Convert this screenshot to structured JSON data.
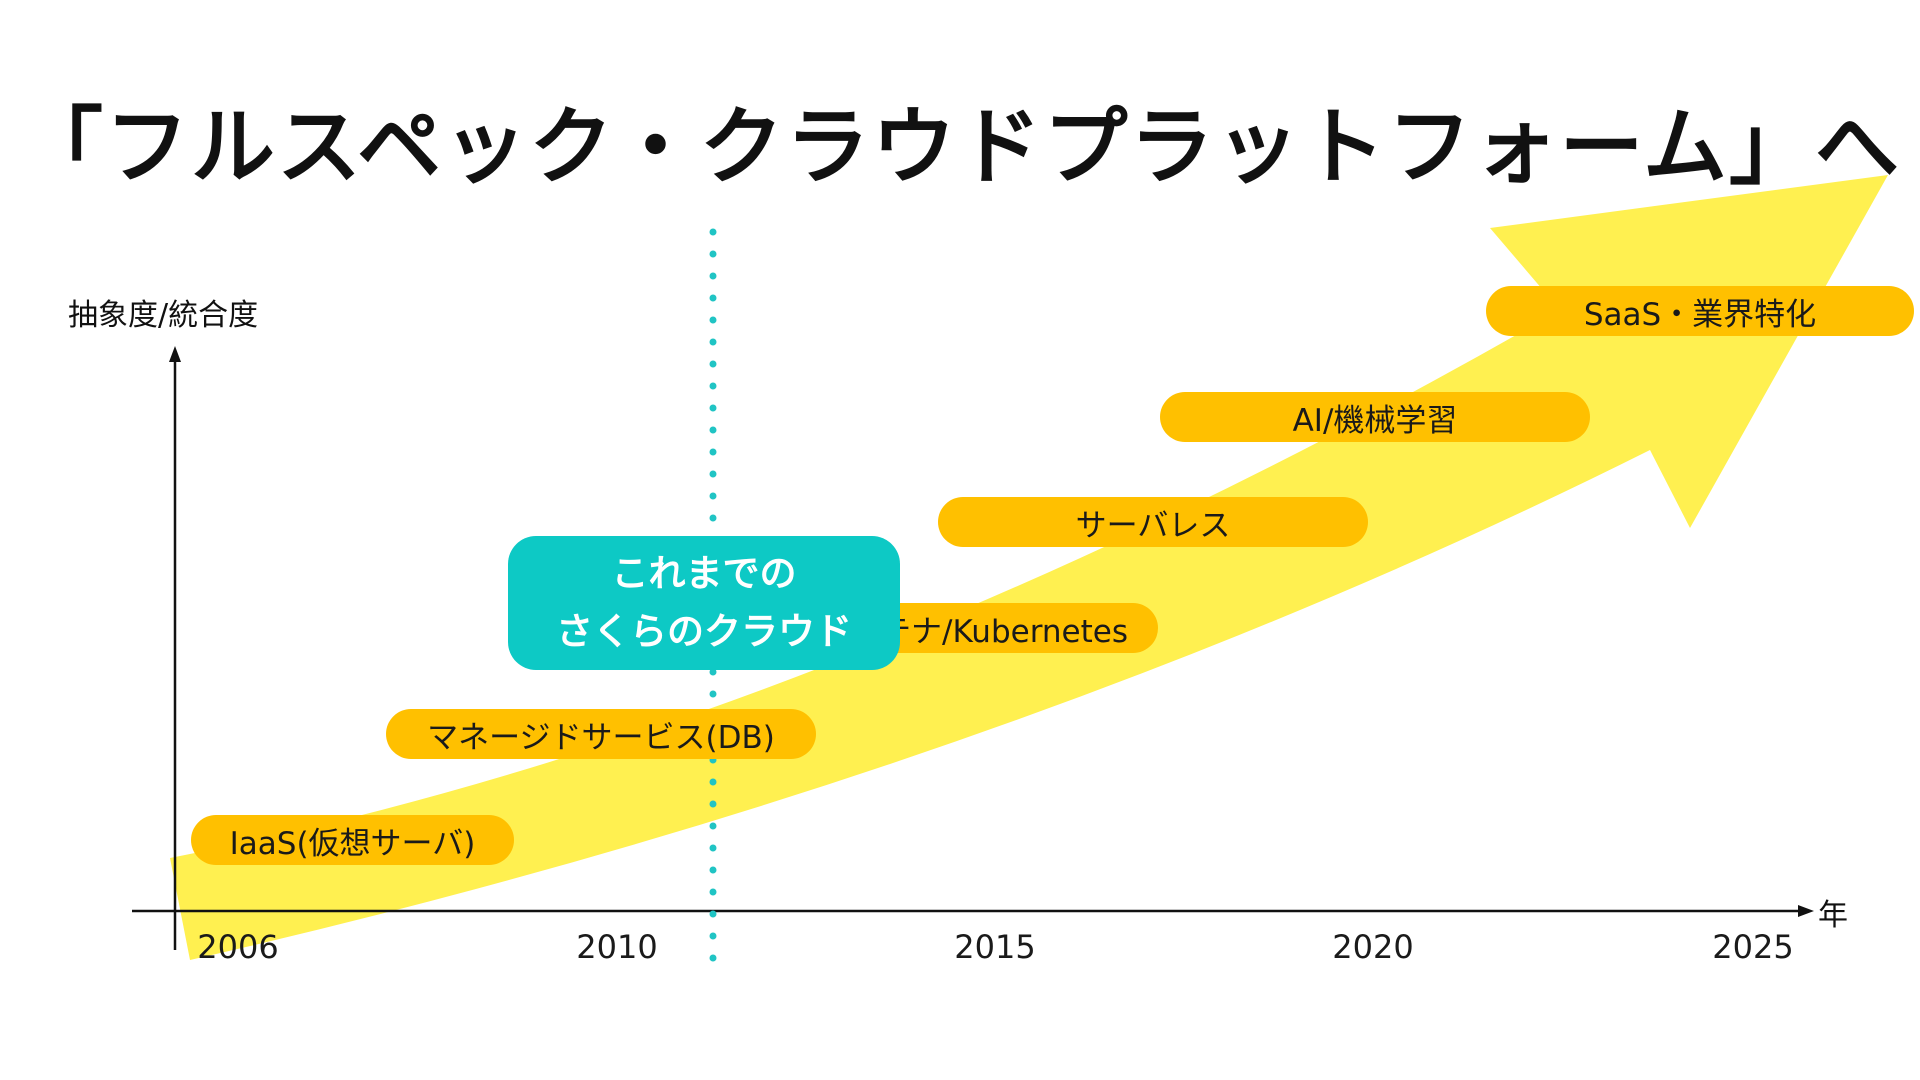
{
  "title": "「フルスペック・クラウドプラットフォーム」へ",
  "axes": {
    "y_label": "抽象度/統合度",
    "x_unit": "年",
    "x_ticks": [
      "2006",
      "2010",
      "2015",
      "2020",
      "2025"
    ]
  },
  "stages": [
    {
      "label": "IaaS(仮想サーバ)"
    },
    {
      "label": "マネージドサービス(DB)"
    },
    {
      "label": "コンテナ/Kubernetes"
    },
    {
      "label": "サーバレス"
    },
    {
      "label": "AI/機械学習"
    },
    {
      "label": "SaaS・業界特化"
    }
  ],
  "callout": {
    "line1": "これまでの",
    "line2": "さくらのクラウド"
  },
  "colors": {
    "arrow": "#fff050",
    "stage_pill": "#ffc000",
    "callout": "#0dc9c5",
    "divider": "#20c4c4"
  }
}
